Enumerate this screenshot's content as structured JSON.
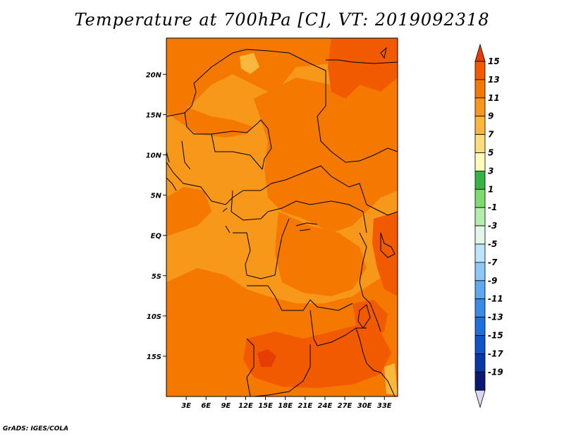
{
  "title": "Temperature at 700hPa [C], VT: 2019092318",
  "credit": "GrADS: IGES/COLA",
  "map": {
    "lon_range": [
      0,
      35
    ],
    "lat_range": [
      -20,
      24.5
    ],
    "lon_ticks": [
      "3E",
      "6E",
      "9E",
      "12E",
      "15E",
      "18E",
      "21E",
      "24E",
      "27E",
      "30E",
      "33E"
    ],
    "lat_ticks": [
      "20N",
      "15N",
      "10N",
      "5N",
      "EQ",
      "5S",
      "10S",
      "15S"
    ]
  },
  "colorbar": {
    "levels": [
      "15",
      "13",
      "11",
      "9",
      "7",
      "5",
      "3",
      "1",
      "-1",
      "-3",
      "-5",
      "-7",
      "-9",
      "-11",
      "-13",
      "-15",
      "-17",
      "-19"
    ],
    "colors": [
      "#e83d00",
      "#f25a00",
      "#f57800",
      "#f7981a",
      "#f9b83d",
      "#fddd7a",
      "#fefcb8",
      "#35b543",
      "#7cdc6e",
      "#b4eeac",
      "#e3f7e8",
      "#bde4f9",
      "#8cc8f5",
      "#5ea8ef",
      "#3a8ae6",
      "#216fdc",
      "#1054ca",
      "#0a37a6",
      "#0a1a70",
      "#dad8f6"
    ]
  },
  "field_colors": {
    "c7": "#f9b83d",
    "c9": "#f7981a",
    "c11": "#f57800",
    "c13": "#f25a00",
    "c15": "#e83d00"
  }
}
